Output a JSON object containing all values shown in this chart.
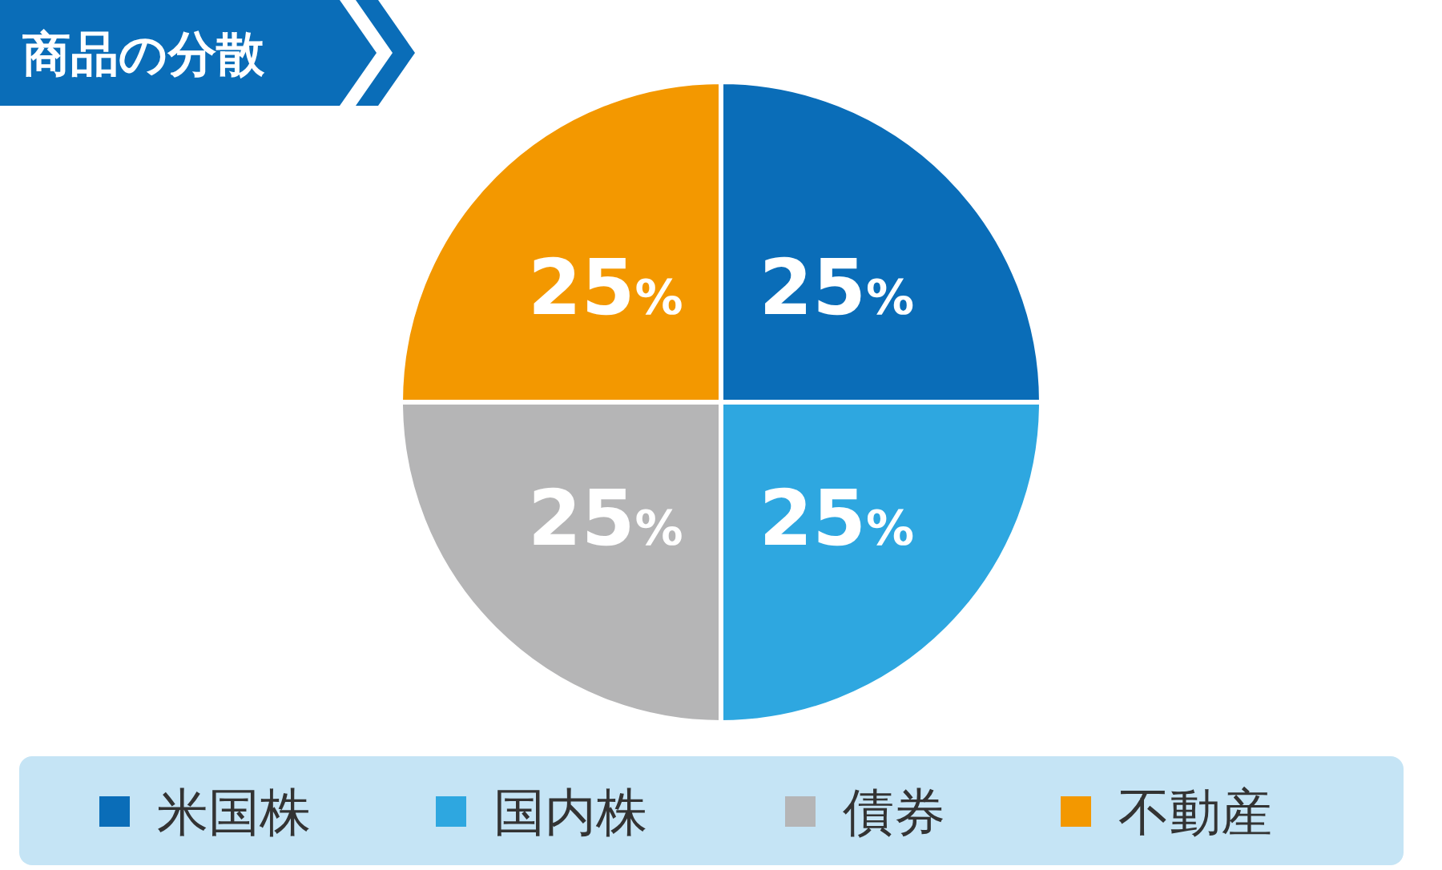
{
  "chart_data": {
    "type": "pie",
    "title": "商品の分散",
    "categories": [
      "米国株",
      "国内株",
      "債券",
      "不動産"
    ],
    "values": [
      25,
      25,
      25,
      25
    ],
    "colors": [
      "#0a6db8",
      "#2ea7e0",
      "#b5b5b6",
      "#f39800"
    ],
    "value_labels": [
      "25%",
      "25%",
      "25%",
      "25%"
    ],
    "legend": "bottom"
  }
}
